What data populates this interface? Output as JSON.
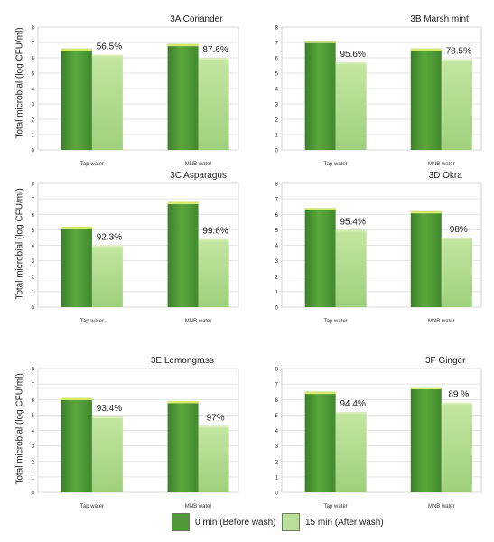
{
  "y_axis_label": "Total microbial (log CFU/ml)",
  "legend": [
    {
      "label": "0 min (Before wash)",
      "color": "#4f9a36"
    },
    {
      "label": "15 min (After wash)",
      "color": "#b9df9a"
    }
  ],
  "colors": {
    "before": "#4f9a36",
    "after": "#b9df9a",
    "top_cap": "#d4ea6a",
    "grid": "#dddddd"
  },
  "chart_data": [
    {
      "type": "bar",
      "title": "3A  Coriander",
      "categories": [
        "Tap water",
        "MNB water"
      ],
      "ylim": [
        0,
        8
      ],
      "series": [
        {
          "name": "0 min (Before wash)",
          "values": [
            6.6,
            6.9
          ]
        },
        {
          "name": "15 min (After wash)",
          "values": [
            6.2,
            6.0
          ]
        }
      ],
      "annotations": [
        "56.5%",
        "87.6%"
      ]
    },
    {
      "type": "bar",
      "title": "3B  Marsh mint",
      "categories": [
        "Tap water",
        "MNB water"
      ],
      "ylim": [
        0,
        8
      ],
      "series": [
        {
          "name": "0 min (Before wash)",
          "values": [
            7.1,
            6.6
          ]
        },
        {
          "name": "15 min (After wash)",
          "values": [
            5.7,
            5.9
          ]
        }
      ],
      "annotations": [
        "95.6%",
        "78.5%"
      ]
    },
    {
      "type": "bar",
      "title": "3C  Asparagus",
      "categories": [
        "Tap water",
        "MNB water"
      ],
      "ylim": [
        0,
        8
      ],
      "series": [
        {
          "name": "0 min (Before wash)",
          "values": [
            5.2,
            6.8
          ]
        },
        {
          "name": "15 min (After wash)",
          "values": [
            4.0,
            4.4
          ]
        }
      ],
      "annotations": [
        "92.3%",
        "99.6%"
      ]
    },
    {
      "type": "bar",
      "title": "3D  Okra",
      "categories": [
        "Tap water",
        "MNB water"
      ],
      "ylim": [
        0,
        8
      ],
      "series": [
        {
          "name": "0 min (Before wash)",
          "values": [
            6.4,
            6.2
          ]
        },
        {
          "name": "15 min (After wash)",
          "values": [
            5.0,
            4.5
          ]
        }
      ],
      "annotations": [
        "95.4%",
        "98%"
      ]
    },
    {
      "type": "bar",
      "title": "3E  Lemongrass",
      "categories": [
        "Tap water",
        "MNB water"
      ],
      "ylim": [
        0,
        8
      ],
      "series": [
        {
          "name": "0 min (Before wash)",
          "values": [
            6.1,
            5.9
          ]
        },
        {
          "name": "15 min (After wash)",
          "values": [
            4.9,
            4.3
          ]
        }
      ],
      "annotations": [
        "93.4%",
        "97%"
      ]
    },
    {
      "type": "bar",
      "title": "3F  Ginger",
      "categories": [
        "Tap water",
        "MNB water"
      ],
      "ylim": [
        0,
        8
      ],
      "series": [
        {
          "name": "0 min (Before wash)",
          "values": [
            6.5,
            6.8
          ]
        },
        {
          "name": "15 min (After wash)",
          "values": [
            5.2,
            5.8
          ]
        }
      ],
      "annotations": [
        "94.4%",
        "89 %"
      ]
    }
  ]
}
